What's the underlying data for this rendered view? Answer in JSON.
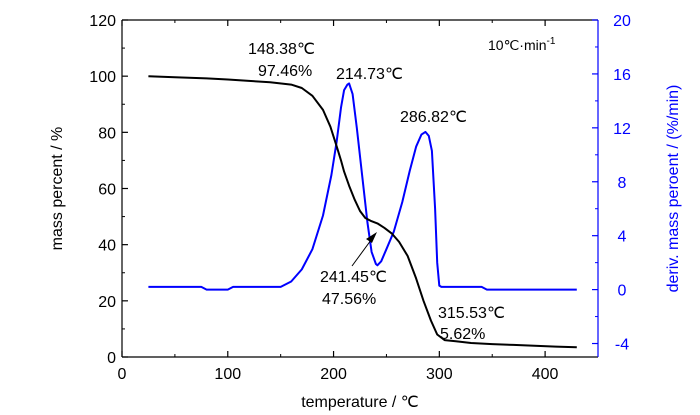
{
  "chart_data": {
    "type": "line",
    "xlabel": "temperature / ℃",
    "ylabel_left": "mass percent / %",
    "ylabel_right": "deriv. mass peroent / (%/min)",
    "xlim": [
      0,
      450
    ],
    "ylim_left": [
      0,
      120
    ],
    "ylim_right": [
      -5,
      20
    ],
    "x_ticks": [
      "0",
      "100",
      "200",
      "300",
      "400"
    ],
    "y_left_ticks": [
      "0",
      "20",
      "40",
      "60",
      "80",
      "100",
      "120"
    ],
    "y_right_ticks": [
      "-4",
      "0",
      "4",
      "8",
      "12",
      "16",
      "20"
    ],
    "heating_rate": {
      "prefix": "10℃·min",
      "sup": "-1"
    },
    "colors": {
      "tg": "#000000",
      "dtg": "#0000ff",
      "right_axis": "#0000ff"
    },
    "tg_series": {
      "axis": "left",
      "points": [
        [
          25,
          100
        ],
        [
          50,
          99.6
        ],
        [
          80,
          99.2
        ],
        [
          100,
          98.8
        ],
        [
          120,
          98.3
        ],
        [
          140,
          97.8
        ],
        [
          148.38,
          97.46
        ],
        [
          160,
          97.0
        ],
        [
          170,
          95.8
        ],
        [
          180,
          93
        ],
        [
          190,
          88
        ],
        [
          197,
          82
        ],
        [
          203,
          75
        ],
        [
          207,
          70
        ],
        [
          210,
          66
        ],
        [
          214.73,
          61
        ],
        [
          220,
          56
        ],
        [
          225,
          52
        ],
        [
          230,
          49.5
        ],
        [
          235,
          48.5
        ],
        [
          241.45,
          47.56
        ],
        [
          248,
          46
        ],
        [
          255,
          44
        ],
        [
          262,
          41
        ],
        [
          270,
          36
        ],
        [
          278,
          28
        ],
        [
          285,
          20
        ],
        [
          292,
          13
        ],
        [
          298,
          8
        ],
        [
          305,
          6
        ],
        [
          315.53,
          5.62
        ],
        [
          330,
          5
        ],
        [
          350,
          4.6
        ],
        [
          370,
          4.3
        ],
        [
          390,
          4.0
        ],
        [
          410,
          3.7
        ],
        [
          430,
          3.5
        ]
      ]
    },
    "dtg_series": {
      "axis": "right",
      "points": [
        [
          25,
          0.2
        ],
        [
          75,
          0.2
        ],
        [
          80,
          0
        ],
        [
          100,
          0
        ],
        [
          105,
          0.2
        ],
        [
          150,
          0.2
        ],
        [
          160,
          0.6
        ],
        [
          170,
          1.5
        ],
        [
          180,
          3
        ],
        [
          190,
          5.5
        ],
        [
          198,
          8.5
        ],
        [
          203,
          11
        ],
        [
          207,
          13.5
        ],
        [
          210,
          14.8
        ],
        [
          213,
          15.2
        ],
        [
          214.73,
          15.3
        ],
        [
          218,
          14.5
        ],
        [
          222,
          12
        ],
        [
          227,
          8.5
        ],
        [
          232,
          5
        ],
        [
          236,
          2.8
        ],
        [
          240,
          1.9
        ],
        [
          241.45,
          1.8
        ],
        [
          245,
          2.1
        ],
        [
          250,
          3
        ],
        [
          257,
          4.3
        ],
        [
          265,
          6.5
        ],
        [
          272,
          8.8
        ],
        [
          278,
          10.6
        ],
        [
          283,
          11.5
        ],
        [
          286.82,
          11.7
        ],
        [
          290,
          11.4
        ],
        [
          293,
          10.3
        ],
        [
          296,
          6
        ],
        [
          298,
          2
        ],
        [
          300,
          0.3
        ],
        [
          302,
          0.2
        ],
        [
          340,
          0.2
        ],
        [
          345,
          0
        ],
        [
          430,
          0
        ]
      ]
    },
    "annotations": [
      {
        "id": "a1",
        "lines": [
          "148.38℃",
          "97.46%"
        ]
      },
      {
        "id": "a2",
        "lines": [
          "214.73℃"
        ]
      },
      {
        "id": "a3",
        "lines": [
          "286.82℃"
        ]
      },
      {
        "id": "a4",
        "lines": [
          "241.45℃",
          "47.56%"
        ]
      },
      {
        "id": "a5",
        "lines": [
          "315.53℃",
          "5.62%"
        ]
      }
    ]
  }
}
